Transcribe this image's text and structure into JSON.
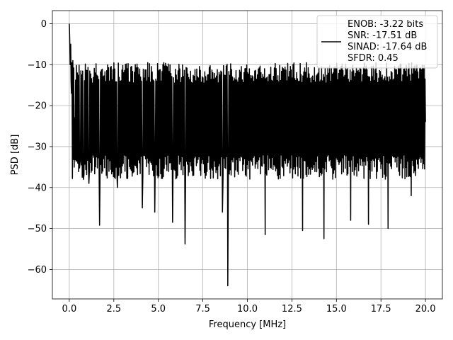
{
  "chart_data": {
    "type": "line",
    "xlabel": "Frequency [MHz]",
    "ylabel": "PSD [dB]",
    "xlim": [
      -0.95,
      20.95
    ],
    "ylim": [
      -67.2,
      3.2
    ],
    "xticks": [
      0.0,
      2.5,
      5.0,
      7.5,
      10.0,
      12.5,
      15.0,
      17.5,
      20.0
    ],
    "xtick_labels": [
      "0.0",
      "2.5",
      "5.0",
      "7.5",
      "10.0",
      "12.5",
      "15.0",
      "17.5",
      "20.0"
    ],
    "yticks": [
      0,
      -10,
      -20,
      -30,
      -40,
      -50,
      -60
    ],
    "ytick_labels": [
      "0",
      "−10",
      "−20",
      "−30",
      "−40",
      "−50",
      "−60"
    ],
    "grid": true,
    "legend_position": "top-right",
    "series": [
      {
        "name": "ENOB: -3.22 bits\nSNR: -17.51 dB\nSINAD: -17.64 dB\nSFDR: 0.45",
        "color": "#000000",
        "x_range": [
          0.0,
          20.0
        ],
        "approx_points": 800,
        "anchors": [
          [
            0.0,
            0.0
          ],
          [
            0.02,
            -3.0
          ],
          [
            0.05,
            -10.0
          ],
          [
            0.08,
            -5.0
          ],
          [
            0.12,
            -17.0
          ],
          [
            0.2,
            -9.0
          ],
          [
            0.3,
            -23.0
          ],
          [
            0.45,
            -12.0
          ],
          [
            0.6,
            -34.0
          ],
          [
            0.8,
            -38.0
          ],
          [
            1.1,
            -39.0
          ],
          [
            1.7,
            -49.2
          ],
          [
            2.7,
            -40.0
          ],
          [
            4.1,
            -45.0
          ],
          [
            4.8,
            -46.0
          ],
          [
            5.8,
            -48.5
          ],
          [
            6.5,
            -53.8
          ],
          [
            8.6,
            -46.0
          ],
          [
            8.9,
            -64.0
          ],
          [
            11.0,
            -51.5
          ],
          [
            13.1,
            -50.5
          ],
          [
            14.3,
            -52.5
          ],
          [
            15.8,
            -48.0
          ],
          [
            16.8,
            -49.0
          ],
          [
            17.9,
            -50.0
          ],
          [
            19.2,
            -42.0
          ],
          [
            20.0,
            -24.0
          ]
        ],
        "envelope_upper_dB": -12.0,
        "envelope_lower_dB": -35.0
      }
    ]
  }
}
